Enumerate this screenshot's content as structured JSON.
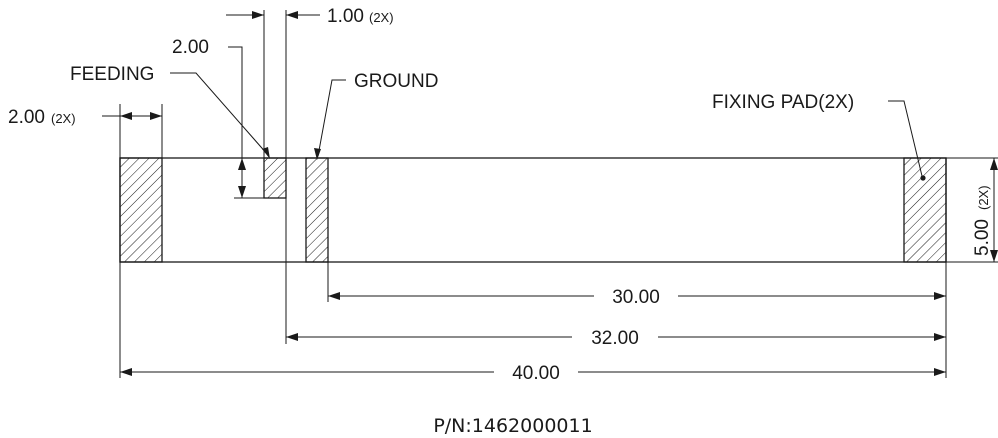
{
  "labels": {
    "dim_1_00": "1.00",
    "dim_1_00_mult": "(2X)",
    "dim_2_00_top": "2.00",
    "feeding": "FEEDING",
    "ground": "GROUND",
    "dim_2_00_left": "2.00",
    "dim_2_00_left_mult": "(2X)",
    "fixing_pad": "FIXING PAD(2X)",
    "dim_5_00": "5.00",
    "dim_5_00_mult": "(2X)",
    "dim_30_00": "30.00",
    "dim_32_00": "32.00",
    "dim_40_00": "40.00",
    "part_number": "P/N:1462000011"
  }
}
